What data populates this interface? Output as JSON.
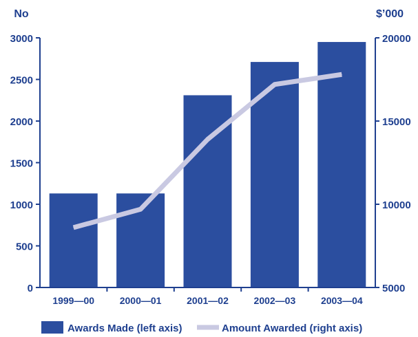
{
  "chart_data": {
    "type": "bar",
    "categories": [
      "1999—00",
      "2000—01",
      "2001—02",
      "2002—03",
      "2003—04"
    ],
    "series": [
      {
        "name": "Awards Made (left axis)",
        "type": "bar",
        "axis": "left",
        "values": [
          1130,
          1130,
          2310,
          2710,
          2950
        ]
      },
      {
        "name": "Amount Awarded (right axis)",
        "type": "line",
        "axis": "right",
        "values": [
          8600,
          9700,
          13900,
          17200,
          17800
        ]
      }
    ],
    "left_axis": {
      "unit_label": "No",
      "ylim": [
        0,
        3000
      ],
      "ticks": [
        "0",
        "500",
        "1000",
        "1500",
        "2000",
        "2500",
        "3000"
      ]
    },
    "right_axis": {
      "unit_label": "$’000",
      "ylim": [
        5000,
        20000
      ],
      "ticks": [
        "5000",
        "10000",
        "15000",
        "20000"
      ]
    },
    "grid": false,
    "legend_position": "bottom",
    "colors": {
      "bar": "#2b4e9f",
      "line": "#c9c9e2",
      "text": "#1e3f8f",
      "axis": "#1e3f8f"
    }
  }
}
